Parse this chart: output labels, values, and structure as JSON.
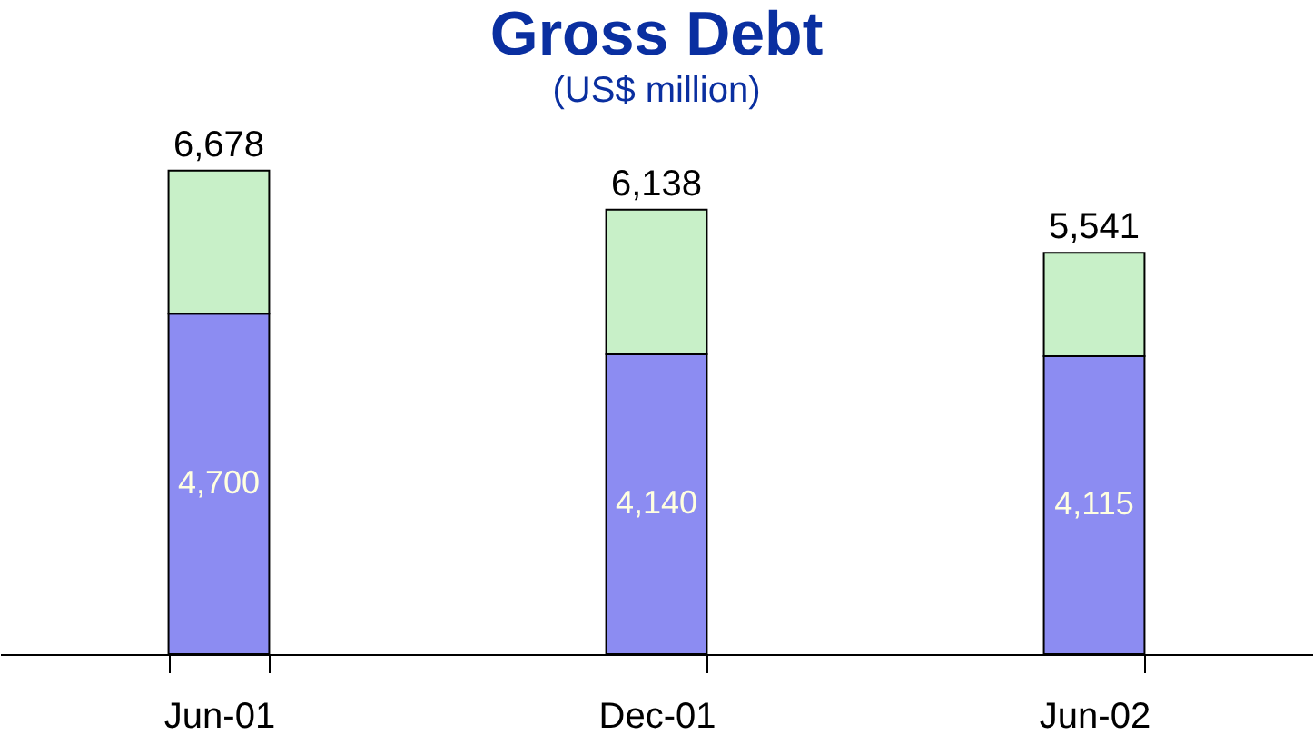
{
  "chart_data": {
    "type": "bar",
    "title": "Gross Debt",
    "subtitle": "(US$ million)",
    "categories": [
      "Jun-01",
      "Dec-01",
      "Jun-02"
    ],
    "stacked": true,
    "series": [
      {
        "color": "#8c8cf2",
        "values": [
          4700,
          4140,
          4115
        ],
        "value_labels": [
          "4,700",
          "4,140",
          "4,115"
        ]
      },
      {
        "color": "#c8f0c8",
        "values": [
          1978,
          1998,
          1426
        ]
      }
    ],
    "totals": [
      "6,678",
      "6,138",
      "5,541"
    ],
    "tick_labels": "x",
    "grid": false
  }
}
